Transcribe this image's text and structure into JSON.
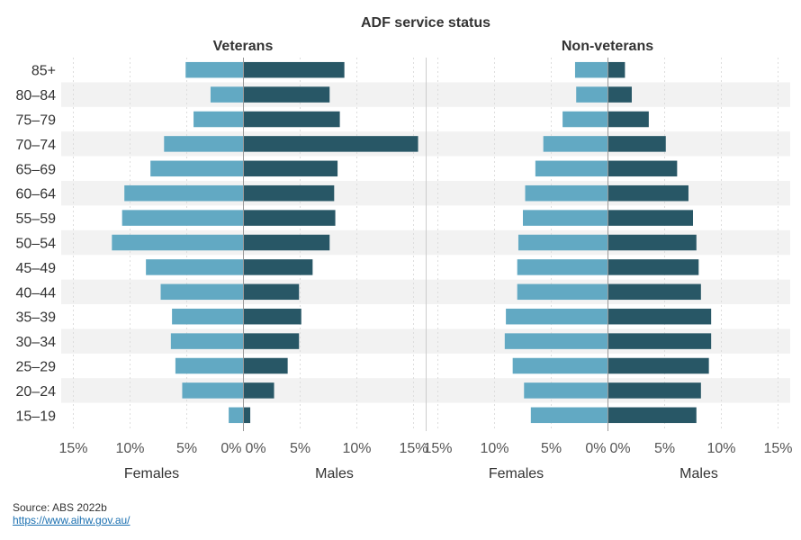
{
  "chart_data": {
    "type": "bar",
    "title": "ADF service status",
    "categories": [
      "85+",
      "80–84",
      "75–79",
      "70–74",
      "65–69",
      "60–64",
      "55–59",
      "50–54",
      "45–49",
      "40–44",
      "35–39",
      "30–34",
      "25–29",
      "20–24",
      "15–19"
    ],
    "panels": [
      {
        "name": "Veterans",
        "series": [
          {
            "name": "Females",
            "values": [
              5.1,
              2.9,
              4.4,
              7.0,
              8.2,
              10.5,
              10.7,
              11.6,
              8.6,
              7.3,
              6.3,
              6.4,
              6.0,
              5.4,
              1.3
            ]
          },
          {
            "name": "Males",
            "values": [
              8.9,
              7.6,
              8.5,
              15.4,
              8.3,
              8.0,
              8.1,
              7.6,
              6.1,
              4.9,
              5.1,
              4.9,
              3.9,
              2.7,
              0.6
            ]
          }
        ]
      },
      {
        "name": "Non-veterans",
        "series": [
          {
            "name": "Females",
            "values": [
              2.9,
              2.8,
              4.0,
              5.7,
              6.4,
              7.3,
              7.5,
              7.9,
              8.0,
              8.0,
              9.0,
              9.1,
              8.4,
              7.4,
              6.8
            ]
          },
          {
            "name": "Males",
            "values": [
              1.5,
              2.1,
              3.6,
              5.1,
              6.1,
              7.1,
              7.5,
              7.8,
              8.0,
              8.2,
              9.1,
              9.1,
              8.9,
              8.2,
              7.8
            ]
          }
        ]
      }
    ],
    "x_ticks": [
      "15%",
      "10%",
      "5%",
      "0%"
    ],
    "x_ticks_right": [
      "0%",
      "5%",
      "10%",
      "15%"
    ],
    "xlim": [
      0,
      15
    ],
    "xlabel_left": "Females",
    "xlabel_right": "Males",
    "colors": {
      "Females": "#62a9c3",
      "Males": "#285766",
      "band": "#f2f2f2",
      "grid": "#dddddd",
      "axis": "#999999"
    },
    "grid": true
  },
  "source": {
    "text": "Source: ABS 2022b",
    "link": "https://www.aihw.gov.au/"
  }
}
